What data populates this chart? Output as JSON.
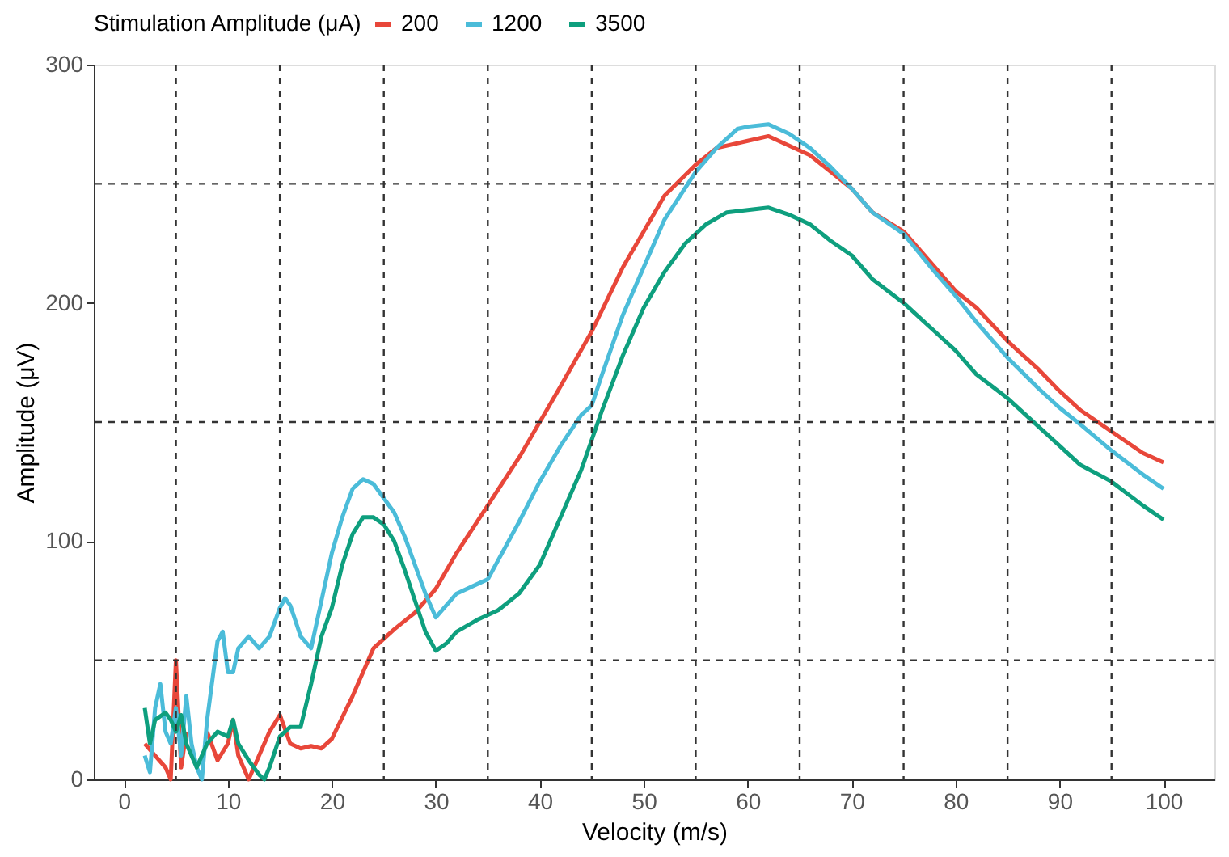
{
  "chart_data": {
    "type": "line",
    "xlabel": "Velocity (m/s)",
    "ylabel": "Amplitude (μV)",
    "legend_title": "Stimulation Amplitude (μA)",
    "xlim": [
      -2.9,
      104.9
    ],
    "xticks": [
      0,
      10,
      20,
      30,
      40,
      50,
      60,
      70,
      80,
      90,
      100
    ],
    "ylim": [
      0,
      300
    ],
    "yticks": [
      0,
      100,
      200,
      300
    ],
    "grid": false,
    "legend": "top",
    "line_style": "solid",
    "marker": "none",
    "ref_lines": [
      {
        "axis": "x",
        "value": 5,
        "line_style": "dashed",
        "color": "#333333"
      },
      {
        "axis": "x",
        "value": 15,
        "line_style": "dashed",
        "color": "#333333"
      },
      {
        "axis": "x",
        "value": 25,
        "line_style": "dashed",
        "color": "#333333"
      },
      {
        "axis": "x",
        "value": 35,
        "line_style": "dashed",
        "color": "#333333"
      },
      {
        "axis": "x",
        "value": 45,
        "line_style": "dashed",
        "color": "#333333"
      },
      {
        "axis": "x",
        "value": 55,
        "line_style": "dashed",
        "color": "#333333"
      },
      {
        "axis": "x",
        "value": 65,
        "line_style": "dashed",
        "color": "#333333"
      },
      {
        "axis": "x",
        "value": 75,
        "line_style": "dashed",
        "color": "#333333"
      },
      {
        "axis": "x",
        "value": 85,
        "line_style": "dashed",
        "color": "#333333"
      },
      {
        "axis": "x",
        "value": 95,
        "line_style": "dashed",
        "color": "#333333"
      },
      {
        "axis": "y",
        "value": 50,
        "line_style": "dashed",
        "color": "#333333"
      },
      {
        "axis": "y",
        "value": 150,
        "line_style": "dashed",
        "color": "#333333"
      },
      {
        "axis": "y",
        "value": 250,
        "line_style": "dashed",
        "color": "#333333"
      }
    ],
    "series": [
      {
        "name": "200",
        "color": "#e8473a",
        "x": [
          2,
          3,
          4,
          4.5,
          5,
          5.5,
          6,
          7,
          8,
          9,
          10,
          10.5,
          11,
          12,
          13,
          14,
          15,
          16,
          17,
          18,
          19,
          20,
          22,
          24,
          26,
          28,
          30,
          32,
          35,
          38,
          40,
          42,
          45,
          48,
          50,
          52,
          55,
          57,
          60,
          62,
          64,
          66,
          68,
          70,
          72,
          75,
          78,
          80,
          82,
          85,
          88,
          90,
          92,
          95,
          98,
          100
        ],
        "values": [
          15,
          10,
          5,
          0,
          50,
          5,
          20,
          null,
          20,
          8,
          15,
          25,
          10,
          0,
          10,
          20,
          27,
          15,
          13,
          14,
          13,
          17,
          35,
          55,
          63,
          70,
          80,
          95,
          115,
          135,
          150,
          165,
          188,
          215,
          230,
          245,
          258,
          265,
          268,
          270,
          266,
          262,
          255,
          248,
          238,
          230,
          215,
          205,
          198,
          184,
          172,
          163,
          155,
          146,
          137,
          133
        ]
      },
      {
        "name": "1200",
        "color": "#4bbcd9",
        "x": [
          2,
          2.5,
          3,
          3.5,
          4,
          4.5,
          5,
          5.5,
          6,
          6.5,
          7,
          7.5,
          8,
          9,
          9.5,
          10,
          10.5,
          11,
          12,
          13,
          14,
          15,
          15.5,
          16,
          17,
          18,
          19,
          20,
          21,
          22,
          23,
          24,
          25,
          26,
          27,
          28,
          29,
          30,
          31,
          32,
          34,
          35,
          36,
          38,
          40,
          42,
          44,
          45,
          46,
          48,
          50,
          52,
          55,
          57,
          59,
          60,
          62,
          64,
          66,
          68,
          70,
          72,
          75,
          78,
          80,
          82,
          85,
          88,
          90,
          92,
          95,
          98,
          100
        ],
        "values": [
          10,
          3,
          30,
          40,
          20,
          15,
          30,
          10,
          35,
          15,
          5,
          0,
          25,
          58,
          62,
          45,
          45,
          55,
          60,
          55,
          60,
          72,
          76,
          73,
          60,
          55,
          75,
          95,
          110,
          122,
          126,
          124,
          118,
          112,
          102,
          90,
          78,
          68,
          73,
          78,
          82,
          84,
          92,
          108,
          125,
          140,
          153,
          157,
          170,
          195,
          215,
          235,
          255,
          265,
          273,
          274,
          275,
          271,
          265,
          257,
          248,
          238,
          229,
          213,
          203,
          192,
          177,
          164,
          156,
          149,
          138,
          128,
          122
        ]
      },
      {
        "name": "3500",
        "color": "#0e9f7e",
        "x": [
          2,
          2.5,
          3,
          4,
          4.5,
          5,
          5.5,
          6,
          7,
          8,
          9,
          10,
          10.5,
          11,
          12,
          13,
          13.5,
          14,
          15,
          16,
          17,
          18,
          19,
          20,
          21,
          22,
          23,
          24,
          25,
          26,
          27,
          28,
          29,
          30,
          31,
          32,
          34,
          36,
          38,
          40,
          42,
          44,
          46,
          48,
          50,
          52,
          54,
          56,
          58,
          60,
          62,
          64,
          66,
          68,
          70,
          72,
          75,
          78,
          80,
          82,
          85,
          88,
          90,
          92,
          95,
          98,
          100
        ],
        "values": [
          30,
          15,
          25,
          28,
          25,
          20,
          27,
          15,
          5,
          15,
          20,
          18,
          25,
          15,
          8,
          2,
          0,
          5,
          18,
          22,
          22,
          40,
          60,
          72,
          90,
          103,
          110,
          110,
          107,
          100,
          88,
          75,
          62,
          54,
          57,
          62,
          67,
          71,
          78,
          90,
          110,
          130,
          155,
          178,
          198,
          213,
          225,
          233,
          238,
          239,
          240,
          237,
          233,
          226,
          220,
          210,
          200,
          188,
          180,
          170,
          160,
          148,
          140,
          132,
          125,
          115,
          109
        ]
      }
    ]
  }
}
